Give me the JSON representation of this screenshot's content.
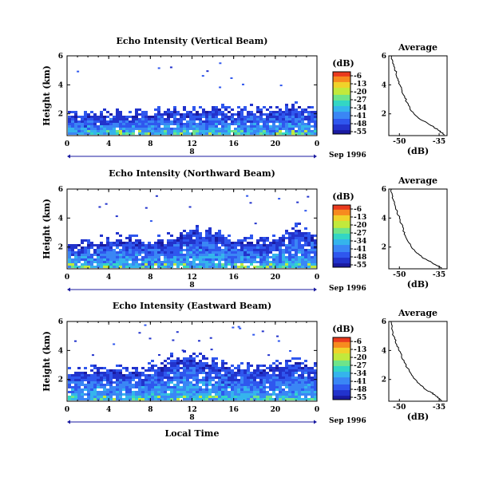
{
  "figure": {
    "xlabel": "Local Time",
    "date_label": "Sep 1996",
    "day_label": "8",
    "colorbar_unit": "(dB)",
    "profile_title": "Average",
    "profile_xlabel": "(dB)"
  },
  "colors": {
    "colormap": [
      "#1a1aa0",
      "#2233cc",
      "#2f57ee",
      "#3a86f5",
      "#35b4ec",
      "#33d6c4",
      "#6ee48a",
      "#c2e93c",
      "#f0d22a",
      "#f78a1f",
      "#ea3a1e"
    ]
  },
  "chart_data": [
    {
      "type": "heatmap",
      "title": "Echo Intensity (Vertical Beam)",
      "ylabel": "Height (km)",
      "x_ticks": [
        "0",
        "4",
        "8",
        "12",
        "16",
        "20",
        "0"
      ],
      "y_ticks": [
        "2",
        "4",
        "6"
      ],
      "xlim": [
        0,
        24
      ],
      "ylim": [
        0.5,
        6
      ],
      "colorbar_ticks": [
        "-6",
        "-13",
        "-20",
        "-27",
        "-34",
        "-41",
        "-48",
        "-55"
      ],
      "clim": [
        -55,
        -6
      ],
      "layer_top_km": [
        2.0,
        2.0,
        2.0,
        2.0,
        2.0,
        2.0,
        2.0,
        2.0,
        2.0,
        2.1,
        2.2,
        2.2,
        2.2,
        2.3,
        2.3,
        2.3,
        2.2,
        2.2,
        2.2,
        2.2,
        2.3,
        2.4,
        2.5,
        2.3,
        2.2
      ]
    },
    {
      "type": "heatmap",
      "title": "Echo Intensity (Northward Beam)",
      "ylabel": "Height (km)",
      "x_ticks": [
        "0",
        "4",
        "8",
        "12",
        "16",
        "20",
        "0"
      ],
      "y_ticks": [
        "2",
        "4",
        "6"
      ],
      "xlim": [
        0,
        24
      ],
      "ylim": [
        0.5,
        6
      ],
      "colorbar_ticks": [
        "-6",
        "-13",
        "-20",
        "-27",
        "-34",
        "-41",
        "-48",
        "-55"
      ],
      "clim": [
        -55,
        -6
      ],
      "layer_top_km": [
        2.0,
        2.1,
        2.2,
        2.3,
        2.4,
        2.5,
        2.5,
        2.4,
        2.3,
        2.4,
        2.6,
        2.9,
        3.2,
        3.1,
        2.9,
        2.7,
        2.5,
        2.4,
        2.4,
        2.4,
        2.6,
        2.9,
        3.3,
        2.8,
        2.6
      ]
    },
    {
      "type": "heatmap",
      "title": "Echo Intensity (Eastward Beam)",
      "ylabel": "Height (km)",
      "x_ticks": [
        "0",
        "4",
        "8",
        "12",
        "16",
        "20",
        "0"
      ],
      "y_ticks": [
        "2",
        "4",
        "6"
      ],
      "xlim": [
        0,
        24
      ],
      "ylim": [
        0.5,
        6
      ],
      "colorbar_ticks": [
        "-6",
        "-13",
        "-20",
        "-27",
        "-34",
        "-41",
        "-48",
        "-55"
      ],
      "clim": [
        -55,
        -6
      ],
      "layer_top_km": [
        2.4,
        2.5,
        2.6,
        2.7,
        2.7,
        2.6,
        2.6,
        2.6,
        2.8,
        3.1,
        3.4,
        3.6,
        3.5,
        3.3,
        3.1,
        2.9,
        2.8,
        2.8,
        2.8,
        2.8,
        2.9,
        3.1,
        3.3,
        3.0,
        2.8
      ]
    },
    {
      "type": "line",
      "title": "Average",
      "xlabel": "(dB)",
      "x_ticks": [
        "-50",
        "-35"
      ],
      "y_ticks": [
        "2",
        "4",
        "6"
      ],
      "xlim": [
        -54,
        -32
      ],
      "ylim": [
        0.5,
        6
      ],
      "x": [
        -53.0,
        -52.5,
        -51.8,
        -51.2,
        -50.5,
        -49.8,
        -49.0,
        -48.0,
        -47.2,
        -46.0,
        -44.5,
        -42.0,
        -39.0,
        -37.0,
        -35.5,
        -34.0,
        -33.0
      ],
      "y": [
        6.0,
        5.6,
        5.2,
        4.8,
        4.4,
        4.0,
        3.6,
        3.2,
        2.8,
        2.4,
        2.0,
        1.6,
        1.3,
        1.1,
        0.9,
        0.7,
        0.55
      ]
    },
    {
      "type": "line",
      "title": "Average",
      "xlabel": "(dB)",
      "x_ticks": [
        "-50",
        "-35"
      ],
      "y_ticks": [
        "2",
        "4",
        "6"
      ],
      "xlim": [
        -54,
        -32
      ],
      "ylim": [
        0.5,
        6
      ],
      "x": [
        -53.0,
        -52.7,
        -52.2,
        -51.5,
        -50.8,
        -50.0,
        -49.2,
        -48.5,
        -47.8,
        -46.8,
        -45.5,
        -43.5,
        -41.5,
        -39.5,
        -37.5,
        -35.5,
        -34.0
      ],
      "y": [
        6.0,
        5.6,
        5.2,
        4.8,
        4.4,
        4.0,
        3.6,
        3.2,
        2.8,
        2.4,
        2.0,
        1.6,
        1.3,
        1.1,
        0.9,
        0.7,
        0.55
      ]
    },
    {
      "type": "line",
      "title": "Average",
      "xlabel": "(dB)",
      "x_ticks": [
        "-50",
        "-35"
      ],
      "y_ticks": [
        "2",
        "4",
        "6"
      ],
      "xlim": [
        -54,
        -32
      ],
      "ylim": [
        0.5,
        6
      ],
      "x": [
        -53.2,
        -52.8,
        -52.4,
        -51.8,
        -51.0,
        -50.2,
        -49.2,
        -48.2,
        -47.0,
        -45.6,
        -44.0,
        -42.0,
        -40.0,
        -38.0,
        -36.5,
        -35.0,
        -34.0
      ],
      "y": [
        6.0,
        5.6,
        5.2,
        4.8,
        4.4,
        4.0,
        3.6,
        3.2,
        2.8,
        2.4,
        2.0,
        1.6,
        1.3,
        1.1,
        0.9,
        0.7,
        0.55
      ]
    }
  ]
}
